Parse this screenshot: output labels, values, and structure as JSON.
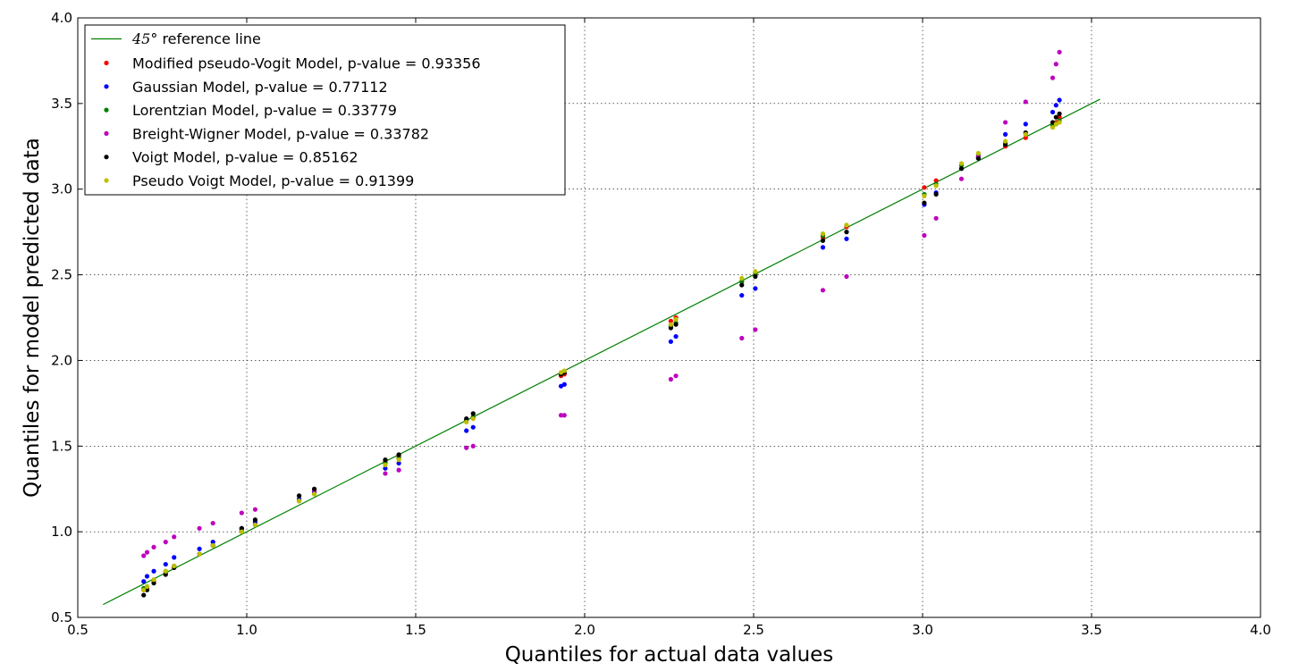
{
  "chart_data": {
    "type": "scatter",
    "title": "",
    "xlabel": "Quantiles for actual data values",
    "ylabel": "Quantiles for model predicted data",
    "xlim": [
      0.5,
      4.0
    ],
    "ylim": [
      0.5,
      4.0
    ],
    "grid": true,
    "x_ticks": [
      "0.5",
      "1.0",
      "1.5",
      "2.0",
      "2.5",
      "3.0",
      "3.5",
      "4.0"
    ],
    "y_ticks": [
      "0.5",
      "1.0",
      "1.5",
      "2.0",
      "2.5",
      "3.0",
      "3.5",
      "4.0"
    ],
    "legend_position": "top-left",
    "reference_line": {
      "label_math": "45°",
      "label_text": "reference line",
      "color": "#008000",
      "x": [
        0.575,
        3.525
      ],
      "y": [
        0.575,
        3.525
      ]
    },
    "x": [
      0.695,
      0.705,
      0.725,
      0.76,
      0.785,
      0.86,
      0.9,
      0.985,
      1.025,
      1.155,
      1.2,
      1.41,
      1.45,
      1.65,
      1.67,
      1.93,
      1.94,
      2.255,
      2.27,
      2.465,
      2.505,
      2.705,
      2.775,
      3.005,
      3.04,
      3.115,
      3.165,
      3.245,
      3.305,
      3.385,
      3.395,
      3.405
    ],
    "series": [
      {
        "name": "Modified pseudo-Vogit Model, p-value = 0.93356",
        "color": "#ff0000",
        "values": [
          0.66,
          0.67,
          0.71,
          0.76,
          0.8,
          0.87,
          0.92,
          1.01,
          1.05,
          1.18,
          1.23,
          1.41,
          1.44,
          1.65,
          1.67,
          1.91,
          1.92,
          2.23,
          2.25,
          2.46,
          2.5,
          2.72,
          2.78,
          3.01,
          3.05,
          3.14,
          3.19,
          3.25,
          3.3,
          3.37,
          3.39,
          3.42
        ]
      },
      {
        "name": "Gaussian Model, p-value = 0.77112",
        "color": "#0000ff",
        "values": [
          0.71,
          0.74,
          0.77,
          0.81,
          0.85,
          0.9,
          0.94,
          1.02,
          1.06,
          1.19,
          1.23,
          1.37,
          1.4,
          1.59,
          1.61,
          1.85,
          1.86,
          2.11,
          2.14,
          2.38,
          2.42,
          2.66,
          2.71,
          2.91,
          2.98,
          3.12,
          3.18,
          3.32,
          3.38,
          3.45,
          3.49,
          3.52
        ]
      },
      {
        "name": "Lorentzian Model, p-value = 0.33779",
        "color": "#008000",
        "values": [
          0.67,
          0.68,
          0.72,
          0.77,
          0.8,
          0.87,
          0.92,
          1.0,
          1.04,
          1.18,
          1.22,
          1.4,
          1.43,
          1.65,
          1.67,
          1.92,
          1.93,
          2.2,
          2.22,
          2.46,
          2.51,
          2.73,
          2.79,
          2.97,
          3.03,
          3.14,
          3.2,
          3.27,
          3.32,
          3.37,
          3.38,
          3.4
        ]
      },
      {
        "name": "Breight-Wigner Model, p-value = 0.33782",
        "color": "#bf00bf",
        "values": [
          0.86,
          0.88,
          0.91,
          0.94,
          0.97,
          1.02,
          1.05,
          1.11,
          1.13,
          1.21,
          1.24,
          1.34,
          1.36,
          1.49,
          1.5,
          1.68,
          1.68,
          1.89,
          1.91,
          2.13,
          2.18,
          2.41,
          2.49,
          2.73,
          2.83,
          3.06,
          3.19,
          3.39,
          3.51,
          3.65,
          3.73,
          3.8
        ]
      },
      {
        "name": "Voigt Model, p-value = 0.85162",
        "color": "#000000",
        "values": [
          0.63,
          0.66,
          0.7,
          0.75,
          0.79,
          0.87,
          0.92,
          1.02,
          1.07,
          1.21,
          1.25,
          1.42,
          1.45,
          1.66,
          1.69,
          1.92,
          1.93,
          2.19,
          2.21,
          2.44,
          2.49,
          2.7,
          2.75,
          2.92,
          2.97,
          3.12,
          3.18,
          3.26,
          3.33,
          3.39,
          3.42,
          3.44
        ]
      },
      {
        "name": "Pseudo Voigt Model, p-value = 0.91399",
        "color": "#bfbf00",
        "values": [
          0.66,
          0.68,
          0.72,
          0.77,
          0.8,
          0.87,
          0.92,
          1.0,
          1.04,
          1.18,
          1.22,
          1.39,
          1.42,
          1.64,
          1.66,
          1.93,
          1.94,
          2.21,
          2.24,
          2.48,
          2.52,
          2.74,
          2.79,
          2.96,
          3.02,
          3.15,
          3.21,
          3.28,
          3.32,
          3.36,
          3.38,
          3.39
        ]
      }
    ]
  }
}
